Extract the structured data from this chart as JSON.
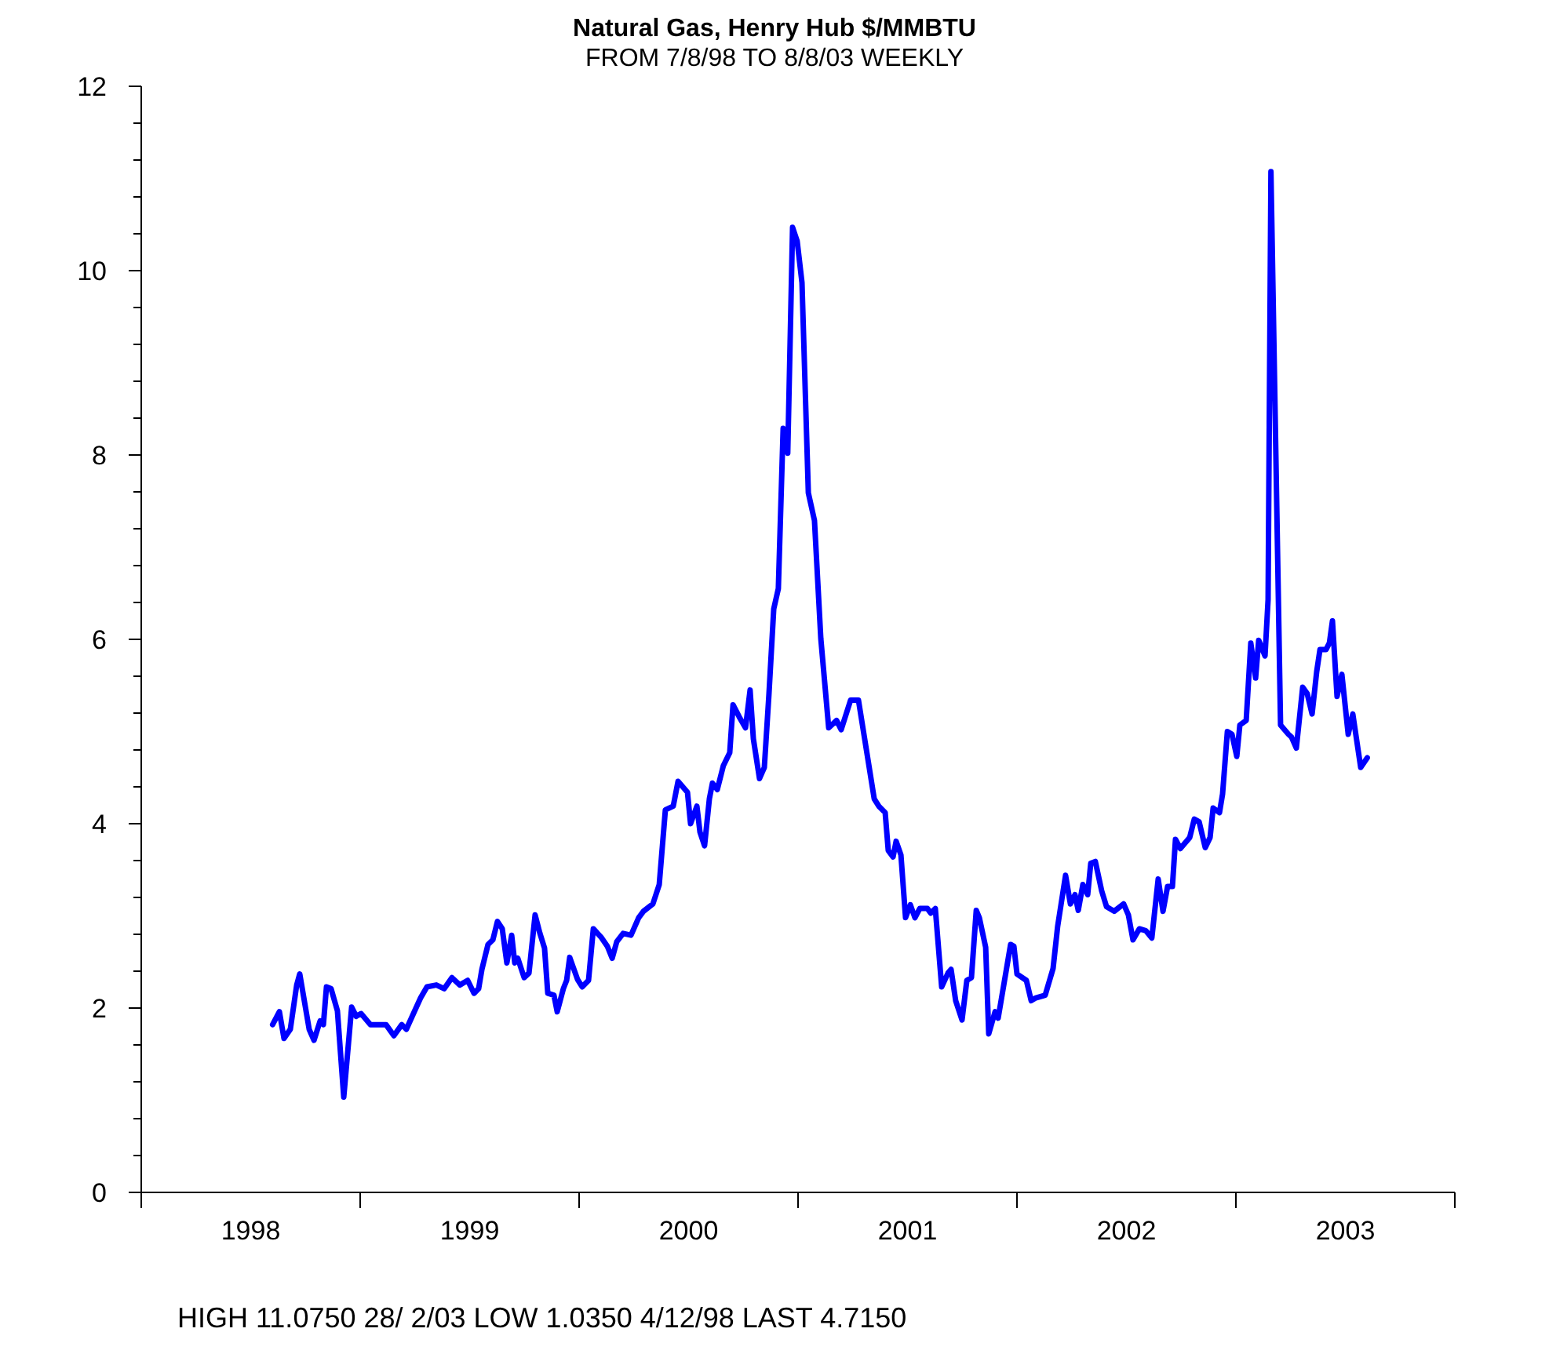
{
  "chart_data": {
    "type": "line",
    "title": "Natural Gas, Henry Hub $/MMBTU",
    "subtitle": "FROM 7/8/98 TO 8/8/03 WEEKLY",
    "annotations": [
      "HIGH 11.0750 28/ 2/03 LOW 1.0350  4/12/98 LAST 4.7150"
    ],
    "line_style": "solid",
    "xlim": [
      1998,
      2004
    ],
    "xticks": [
      {
        "value": 1998,
        "label": null
      },
      {
        "value": 1998.5,
        "label": "1998"
      },
      {
        "value": 1999,
        "label": null
      },
      {
        "value": 1999.5,
        "label": "1999"
      },
      {
        "value": 2000,
        "label": null
      },
      {
        "value": 2000.5,
        "label": "2000"
      },
      {
        "value": 2001,
        "label": null
      },
      {
        "value": 2001.5,
        "label": "2001"
      },
      {
        "value": 2002,
        "label": null
      },
      {
        "value": 2002.5,
        "label": "2002"
      },
      {
        "value": 2003,
        "label": null
      },
      {
        "value": 2003.5,
        "label": "2003"
      },
      {
        "value": 2004,
        "label": null
      }
    ],
    "ylim": [
      0,
      12
    ],
    "yticks": [
      0,
      {
        "value": 0.4,
        "label": null
      },
      {
        "value": 0.8,
        "label": null
      },
      {
        "value": 1.2,
        "label": null
      },
      {
        "value": 1.6,
        "label": null
      },
      2,
      {
        "value": 2.4,
        "label": null
      },
      {
        "value": 2.8,
        "label": null
      },
      {
        "value": 3.2,
        "label": null
      },
      {
        "value": 3.6,
        "label": null
      },
      4,
      {
        "value": 4.4,
        "label": null
      },
      {
        "value": 4.8,
        "label": null
      },
      {
        "value": 5.2,
        "label": null
      },
      {
        "value": 5.6,
        "label": null
      },
      6,
      {
        "value": 6.4,
        "label": null
      },
      {
        "value": 6.8,
        "label": null
      },
      {
        "value": 7.2,
        "label": null
      },
      {
        "value": 7.6,
        "label": null
      },
      8,
      {
        "value": 8.4,
        "label": null
      },
      {
        "value": 8.8,
        "label": null
      },
      {
        "value": 9.2,
        "label": null
      },
      {
        "value": 9.6,
        "label": null
      },
      10,
      {
        "value": 10.4,
        "label": null
      },
      {
        "value": 10.8,
        "label": null
      },
      {
        "value": 11.2,
        "label": null
      },
      {
        "value": 11.6,
        "label": null
      },
      12
    ],
    "series": [
      {
        "color": "#0000ff",
        "x": [
          1998.6,
          1998.631,
          1998.652,
          1998.681,
          1998.71,
          1998.724,
          1998.767,
          1998.789,
          1998.817,
          1998.832,
          1998.846,
          1998.867,
          1998.896,
          1998.925,
          1998.961,
          1998.982,
          1999.004,
          1999.047,
          1999.118,
          1999.154,
          1999.19,
          1999.211,
          1999.247,
          1999.276,
          1999.305,
          1999.348,
          1999.384,
          1999.419,
          1999.455,
          1999.491,
          1999.52,
          1999.541,
          1999.556,
          1999.584,
          1999.606,
          1999.627,
          1999.649,
          1999.67,
          1999.692,
          1999.706,
          1999.72,
          1999.749,
          1999.771,
          1999.799,
          1999.821,
          1999.842,
          1999.857,
          1999.885,
          1999.9,
          1999.928,
          1999.943,
          1999.957,
          1999.993,
          2000.014,
          2000.043,
          2000.065,
          2000.1,
          2000.129,
          2000.151,
          2000.172,
          2000.201,
          2000.237,
          2000.272,
          2000.294,
          2000.337,
          2000.366,
          2000.394,
          2000.43,
          2000.452,
          2000.495,
          2000.509,
          2000.538,
          2000.552,
          2000.573,
          2000.595,
          2000.609,
          2000.631,
          2000.659,
          2000.688,
          2000.703,
          2000.731,
          2000.76,
          2000.781,
          2000.796,
          2000.824,
          2000.846,
          2000.867,
          2000.889,
          2000.91,
          2000.932,
          2000.953,
          2000.975,
          2000.996,
          2001.018,
          2001.047,
          2001.075,
          2001.104,
          2001.14,
          2001.176,
          2001.197,
          2001.24,
          2001.276,
          2001.348,
          2001.369,
          2001.398,
          2001.412,
          2001.434,
          2001.448,
          2001.47,
          2001.491,
          2001.513,
          2001.534,
          2001.556,
          2001.591,
          2001.606,
          2001.627,
          2001.656,
          2001.685,
          2001.699,
          2001.72,
          2001.749,
          2001.771,
          2001.792,
          2001.814,
          2001.828,
          2001.857,
          2001.871,
          2001.9,
          2001.914,
          2001.971,
          2001.986,
          2002.0,
          2002.043,
          2002.065,
          2002.086,
          2002.129,
          2002.165,
          2002.186,
          2002.222,
          2002.244,
          2002.265,
          2002.28,
          2002.301,
          2002.323,
          2002.337,
          2002.358,
          2002.387,
          2002.409,
          2002.444,
          2002.487,
          2002.509,
          2002.53,
          2002.559,
          2002.588,
          2002.616,
          2002.645,
          2002.667,
          2002.688,
          2002.71,
          2002.724,
          2002.746,
          2002.789,
          2002.81,
          2002.832,
          2002.86,
          2002.882,
          2002.896,
          2002.925,
          2002.939,
          2002.961,
          2002.982,
          2003.004,
          2003.018,
          2003.047,
          2003.068,
          2003.09,
          2003.104,
          2003.133,
          2003.147,
          2003.16,
          2003.204,
          2003.24,
          2003.254,
          2003.276,
          2003.305,
          2003.326,
          2003.348,
          2003.369,
          2003.384,
          2003.412,
          2003.427,
          2003.441,
          2003.462,
          2003.484,
          2003.513,
          2003.534,
          2003.57,
          2003.6
        ],
        "values": [
          1.82,
          1.96,
          1.67,
          1.77,
          2.25,
          2.37,
          1.77,
          1.65,
          1.86,
          1.82,
          2.23,
          2.21,
          1.97,
          1.035,
          2.01,
          1.91,
          1.94,
          1.82,
          1.82,
          1.7,
          1.82,
          1.77,
          1.96,
          2.11,
          2.23,
          2.25,
          2.21,
          2.33,
          2.25,
          2.3,
          2.16,
          2.21,
          2.42,
          2.69,
          2.74,
          2.94,
          2.86,
          2.49,
          2.79,
          2.49,
          2.54,
          2.33,
          2.38,
          3.01,
          2.81,
          2.65,
          2.16,
          2.14,
          1.96,
          2.21,
          2.3,
          2.55,
          2.31,
          2.23,
          2.3,
          2.86,
          2.77,
          2.67,
          2.54,
          2.72,
          2.81,
          2.79,
          2.98,
          3.05,
          3.13,
          3.34,
          4.15,
          4.19,
          4.46,
          4.34,
          4.0,
          4.19,
          3.91,
          3.76,
          4.27,
          4.44,
          4.37,
          4.63,
          4.77,
          5.29,
          5.16,
          5.04,
          5.45,
          4.92,
          4.49,
          4.61,
          5.4,
          6.33,
          6.55,
          8.29,
          8.02,
          10.47,
          10.32,
          9.87,
          7.59,
          7.29,
          6.01,
          5.04,
          5.12,
          5.02,
          5.34,
          5.34,
          4.27,
          4.19,
          4.12,
          3.71,
          3.64,
          3.81,
          3.66,
          2.98,
          3.12,
          2.98,
          3.08,
          3.08,
          3.03,
          3.08,
          2.23,
          2.38,
          2.42,
          2.08,
          1.87,
          2.3,
          2.33,
          3.06,
          2.98,
          2.66,
          1.72,
          1.96,
          1.89,
          2.69,
          2.67,
          2.37,
          2.3,
          2.08,
          2.11,
          2.14,
          2.43,
          2.89,
          3.44,
          3.13,
          3.23,
          3.06,
          3.34,
          3.23,
          3.57,
          3.59,
          3.27,
          3.1,
          3.05,
          3.13,
          3.01,
          2.74,
          2.86,
          2.84,
          2.76,
          3.4,
          3.05,
          3.32,
          3.32,
          3.83,
          3.73,
          3.85,
          4.05,
          4.02,
          3.74,
          3.85,
          4.17,
          4.12,
          4.32,
          5.0,
          4.97,
          4.73,
          5.07,
          5.12,
          5.96,
          5.58,
          5.99,
          5.82,
          6.43,
          11.075,
          5.07,
          4.97,
          4.94,
          4.82,
          5.48,
          5.41,
          5.19,
          5.65,
          5.89,
          5.89,
          5.96,
          6.2,
          5.38,
          5.62,
          4.97,
          5.19,
          4.61,
          4.715
        ]
      }
    ]
  }
}
